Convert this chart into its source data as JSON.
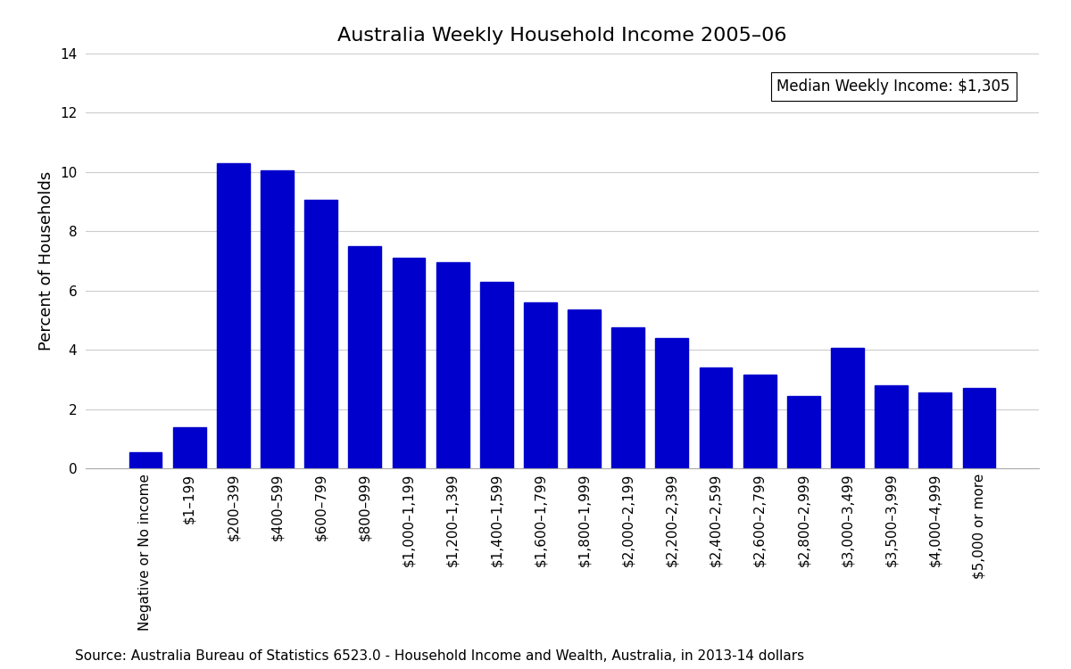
{
  "title": "Australia Weekly Household Income 2005–06",
  "ylabel": "Percent of Households",
  "annotation": "Median Weekly Income: $1,305",
  "source": "Source: Australia Bureau of Statistics 6523.0 - Household Income and Wealth, Australia, in 2013-14 dollars",
  "bar_color": "#0000CC",
  "categories": [
    "Negative or No income",
    "$1–199",
    "$200–399",
    "$400–599",
    "$600–799",
    "$800–999",
    "$1,000–1,199",
    "$1,200–1,399",
    "$1,400–1,599",
    "$1,600–1,799",
    "$1,800–1,999",
    "$2,000–2,199",
    "$2,200–2,399",
    "$2,400–2,599",
    "$2,600–2,799",
    "$2,800–2,999",
    "$3,000–3,499",
    "$3,500–3,999",
    "$4,000–4,999",
    "$5,000 or more"
  ],
  "values": [
    0.55,
    1.4,
    10.3,
    10.05,
    9.05,
    7.5,
    7.1,
    6.95,
    6.3,
    5.6,
    5.35,
    4.75,
    4.4,
    3.4,
    3.15,
    2.45,
    4.05,
    2.8,
    2.55,
    2.7
  ],
  "ylim": [
    0,
    14
  ],
  "yticks": [
    0,
    2,
    4,
    6,
    8,
    10,
    12,
    14
  ],
  "background_color": "#ffffff",
  "grid_color": "#cccccc",
  "title_fontsize": 16,
  "ylabel_fontsize": 13,
  "tick_fontsize": 11,
  "source_fontsize": 11,
  "annotation_fontsize": 12
}
